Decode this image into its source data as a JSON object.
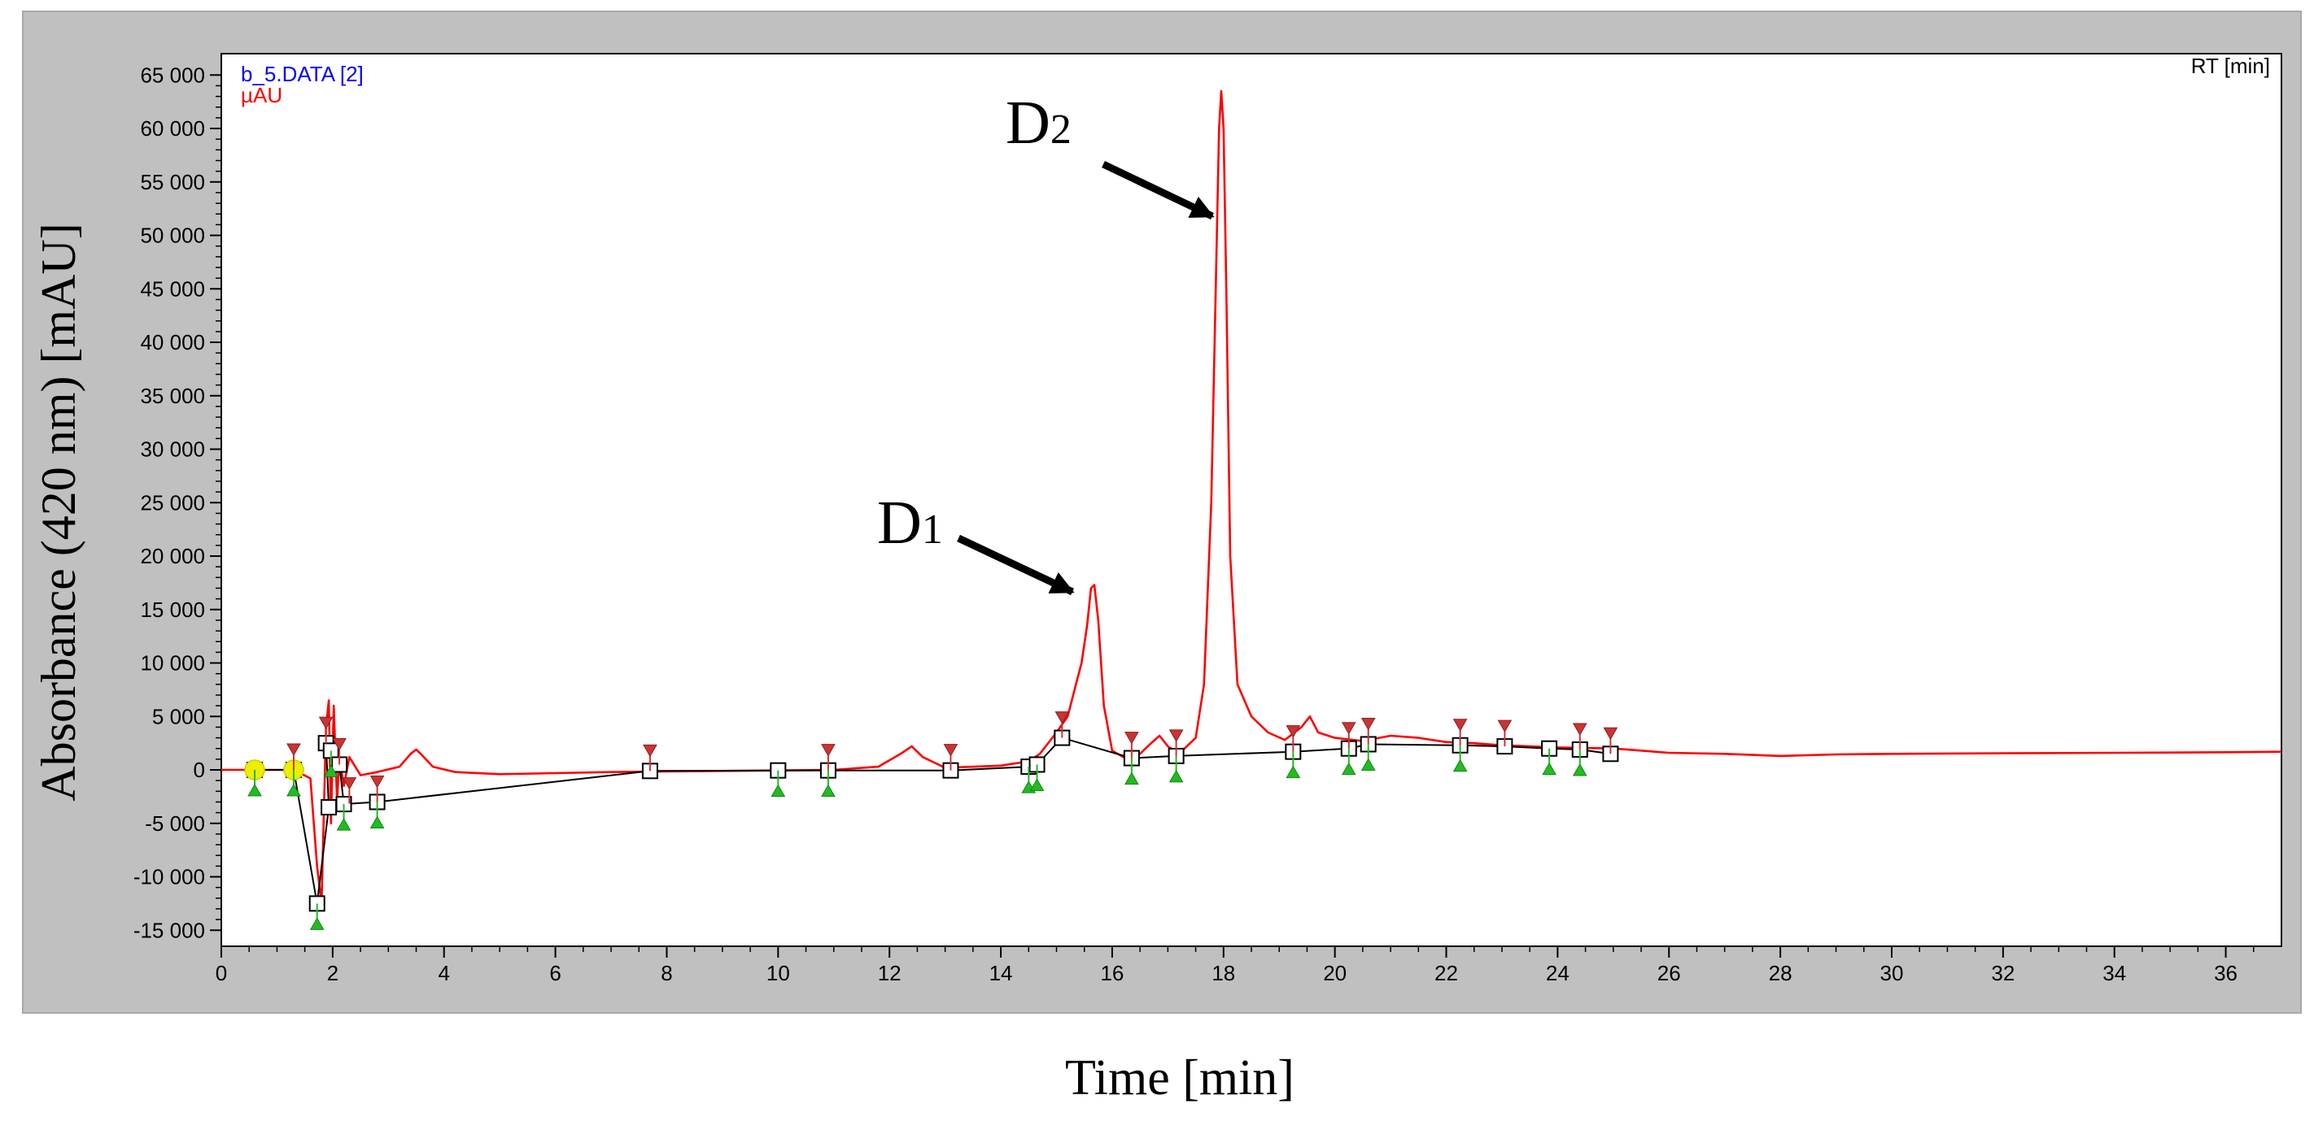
{
  "chart_data": {
    "type": "line",
    "title": "",
    "xlabel": "Time [min]",
    "ylabel": "Absorbance (420 nm) [mAU]",
    "data_file_label": "b_5.DATA [2]",
    "unit_label": "µAU",
    "rt_label": "RT [min]",
    "xlim": [
      0,
      37
    ],
    "ylim": [
      -16500,
      67000
    ],
    "x_ticks": [
      0,
      2,
      4,
      6,
      8,
      10,
      12,
      14,
      16,
      18,
      20,
      22,
      24,
      26,
      28,
      30,
      32,
      34,
      36
    ],
    "y_ticks": [
      -15000,
      -10000,
      -5000,
      0,
      5000,
      10000,
      15000,
      20000,
      25000,
      30000,
      35000,
      40000,
      45000,
      50000,
      55000,
      60000,
      65000
    ],
    "y_tick_labels": [
      "-15 000",
      "-10 000",
      "-5 000",
      "0",
      "5 000",
      "10 000",
      "15 000",
      "20 000",
      "25 000",
      "30 000",
      "35 000",
      "40 000",
      "45 000",
      "50 000",
      "55 000",
      "60 000",
      "65 000"
    ],
    "colors": {
      "signal": "#ff0000",
      "baseline": "#000000",
      "start_marker": "#22bb22",
      "end_marker": "#cc3333",
      "injection_marker": "#eeee00",
      "frame_gray": "#c0c0c0",
      "data_file_label": "#0000ff",
      "unit_label": "#ff0000"
    },
    "series": [
      {
        "name": "signal",
        "x": [
          0,
          0.6,
          1.3,
          1.6,
          1.72,
          1.8,
          1.88,
          1.93,
          1.97,
          2.02,
          2.08,
          2.12,
          2.2,
          2.3,
          2.5,
          2.8,
          3.2,
          3.4,
          3.5,
          3.6,
          3.8,
          4.2,
          5,
          6,
          7,
          8,
          9,
          10,
          11,
          11.8,
          12.2,
          12.4,
          12.6,
          13,
          14,
          14.5,
          14.7,
          15.0,
          15.2,
          15.35,
          15.45,
          15.55,
          15.62,
          15.68,
          15.75,
          15.85,
          16.0,
          16.2,
          16.5,
          16.7,
          16.85,
          17.0,
          17.2,
          17.5,
          17.65,
          17.78,
          17.86,
          17.92,
          17.96,
          18.0,
          18.05,
          18.12,
          18.25,
          18.5,
          18.8,
          19.1,
          19.4,
          19.55,
          19.7,
          20,
          20.5,
          21,
          21.5,
          22,
          22.5,
          23,
          24,
          25,
          26,
          27,
          28,
          29,
          30,
          32,
          34,
          36,
          37
        ],
        "y": [
          0,
          0,
          0,
          -800,
          -9000,
          -12500,
          4000,
          6500,
          -5000,
          6000,
          -3000,
          1200,
          -1500,
          1200,
          -500,
          -200,
          300,
          1500,
          1900,
          1400,
          300,
          -200,
          -400,
          -300,
          -200,
          -150,
          -100,
          -50,
          0,
          300,
          1500,
          2200,
          1200,
          200,
          400,
          800,
          1500,
          3500,
          5000,
          8000,
          10000,
          13500,
          17000,
          17300,
          14000,
          6000,
          1800,
          1200,
          1500,
          2500,
          3200,
          2200,
          1500,
          3000,
          8000,
          25000,
          45000,
          60000,
          63500,
          60000,
          45000,
          20000,
          8000,
          5000,
          3500,
          2800,
          4000,
          5000,
          3500,
          3000,
          2700,
          3200,
          3000,
          2600,
          2500,
          2300,
          2100,
          2000,
          1600,
          1500,
          1300,
          1450,
          1500,
          1550,
          1600,
          1650,
          1700
        ]
      },
      {
        "name": "baseline",
        "x": [
          0.6,
          1.3,
          1.72,
          1.93,
          1.88,
          1.97,
          2.12,
          2.2,
          2.8,
          7.7,
          10.0,
          10.9,
          13.1,
          14.5,
          14.65,
          15.1,
          16.35,
          17.15,
          19.25,
          20.25,
          20.6,
          22.25,
          23.05,
          23.85,
          24.4,
          24.95
        ],
        "y": [
          0,
          0,
          -12500,
          -3500,
          2500,
          1800,
          500,
          -3200,
          -3000,
          -100,
          -50,
          -50,
          -50,
          300,
          500,
          3000,
          1100,
          1300,
          1700,
          2000,
          2400,
          2300,
          2200,
          2000,
          1900,
          1500
        ]
      }
    ],
    "markers": {
      "injection_x": [
        0.6,
        1.3
      ],
      "start_x": [
        0.6,
        1.3,
        1.72,
        1.97,
        2.2,
        2.8,
        10.0,
        10.9,
        14.5,
        14.65,
        16.35,
        17.15,
        19.25,
        20.25,
        20.6,
        22.25,
        23.85,
        24.4
      ],
      "end_x": [
        1.3,
        1.88,
        2.12,
        2.3,
        2.8,
        7.7,
        10.9,
        13.1,
        15.1,
        16.35,
        17.15,
        19.25,
        20.25,
        20.6,
        22.25,
        23.05,
        24.4,
        24.95
      ]
    },
    "annotations": [
      {
        "label": "D",
        "subscript": "1",
        "arrow_tip_x": 15.6,
        "arrow_tip_y": 17500
      },
      {
        "label": "D",
        "subscript": "2",
        "arrow_tip_x": 17.9,
        "arrow_tip_y": 51500
      }
    ]
  }
}
